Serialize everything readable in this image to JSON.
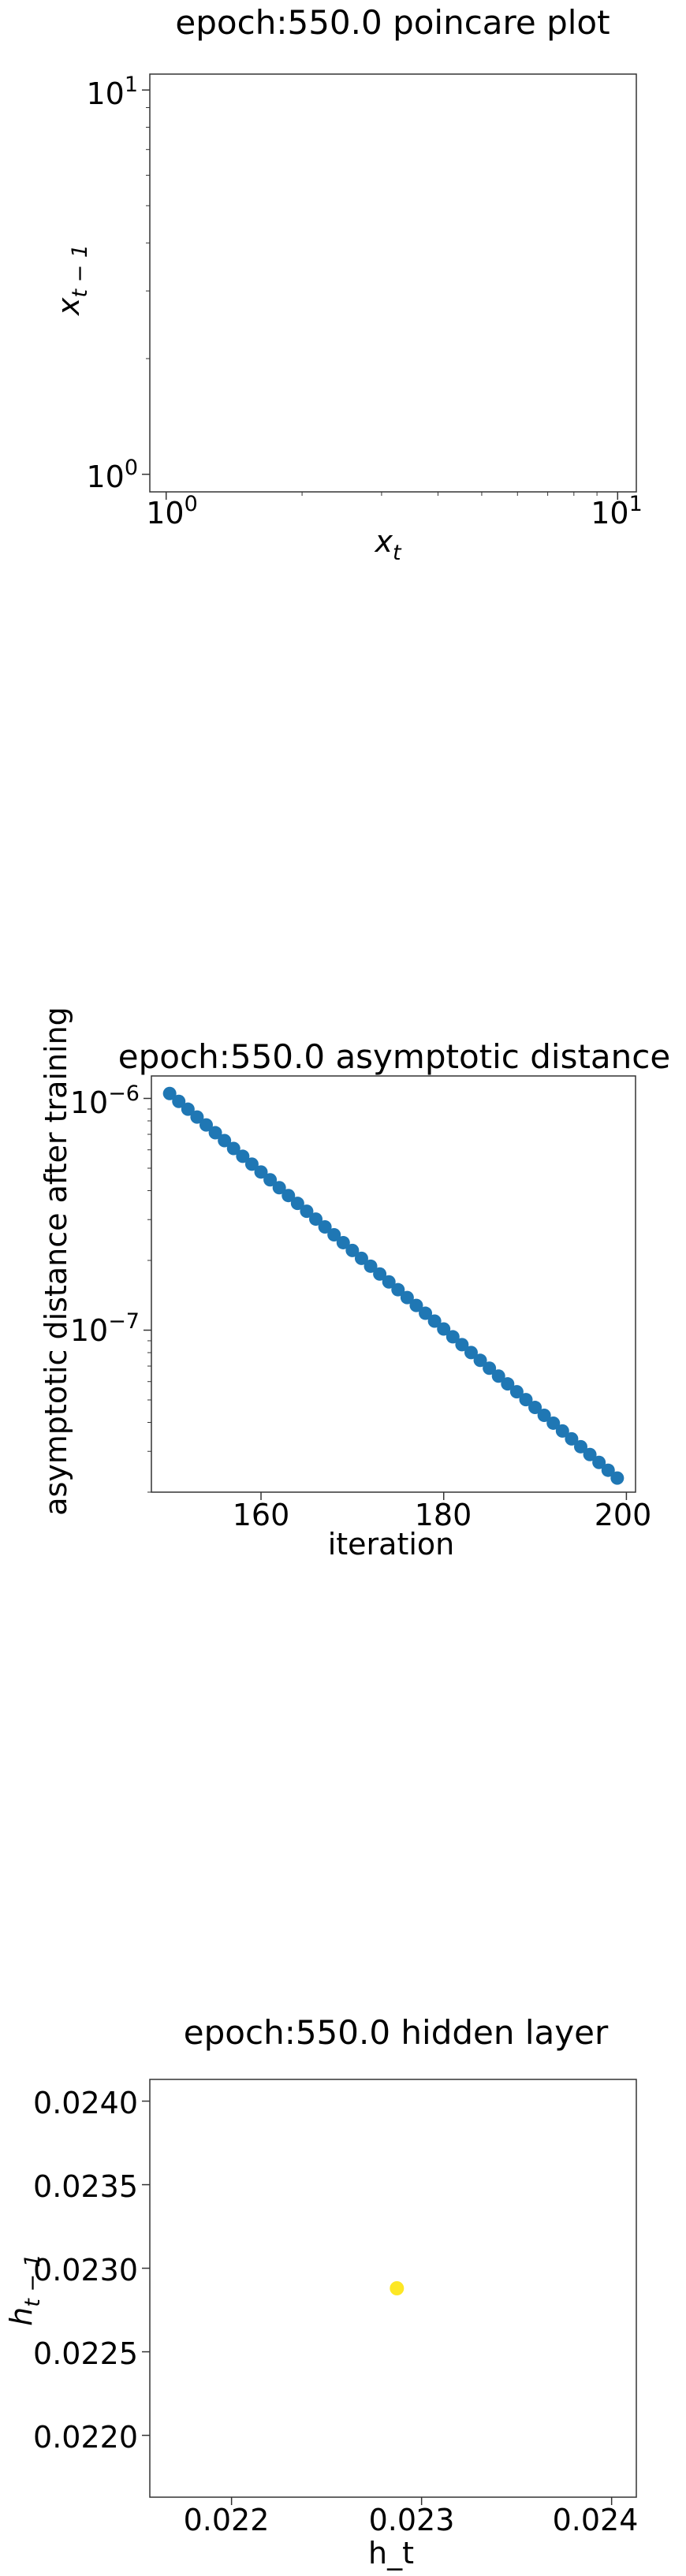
{
  "chart_data": [
    {
      "type": "scatter",
      "title": "epoch:550.0 poincare plot",
      "xlabel_base": "x",
      "xlabel_sub": "t",
      "ylabel_base": "x",
      "ylabel_sub": "t − 1",
      "xscale": "log",
      "yscale": "log",
      "xlim": [
        0.92,
        11
      ],
      "ylim": [
        0.9,
        11
      ],
      "x_ticks": [
        {
          "base": "10",
          "exp": "0"
        },
        {
          "base": "10",
          "exp": "1"
        }
      ],
      "y_ticks": [
        {
          "base": "10",
          "exp": "0"
        },
        {
          "base": "10",
          "exp": "1"
        }
      ],
      "points": []
    },
    {
      "type": "scatter",
      "title": "epoch:550.0 asymptotic distance",
      "xlabel": "iteration",
      "ylabel": "asymptotic distance after training",
      "xscale": "linear",
      "yscale": "log",
      "xlim": [
        148,
        201
      ],
      "ylim": [
        2e-08,
        1.25e-06
      ],
      "x_ticks": [
        "160",
        "180",
        "200"
      ],
      "y_ticks": [
        {
          "base": "10",
          "exp": "−6"
        },
        {
          "base": "10",
          "exp": "−7"
        }
      ],
      "x": [
        150,
        151,
        152,
        153,
        154,
        155,
        156,
        157,
        158,
        159,
        160,
        161,
        162,
        163,
        164,
        165,
        166,
        167,
        168,
        169,
        170,
        171,
        172,
        173,
        174,
        175,
        176,
        177,
        178,
        179,
        180,
        181,
        182,
        183,
        184,
        185,
        186,
        187,
        188,
        189,
        190,
        191,
        192,
        193,
        194,
        195,
        196,
        197,
        198,
        199
      ],
      "y_start": 1.05e-06,
      "y_end": 2.3e-08,
      "color": "#1f77b4"
    },
    {
      "type": "scatter",
      "title": "epoch:550.0 hidden layer",
      "xlabel": "h_t",
      "ylabel_base": "h",
      "ylabel_sub": "t − 1",
      "xlim": [
        0.02157,
        0.02413
      ],
      "ylim": [
        0.02163,
        0.02413
      ],
      "x_ticks": [
        "0.022",
        "0.023",
        "0.024"
      ],
      "y_ticks": [
        "0.0220",
        "0.0225",
        "0.0230",
        "0.0235",
        "0.0240"
      ],
      "points": [
        {
          "x": 0.02287,
          "y": 0.02288
        }
      ],
      "color": "#fde725"
    }
  ]
}
